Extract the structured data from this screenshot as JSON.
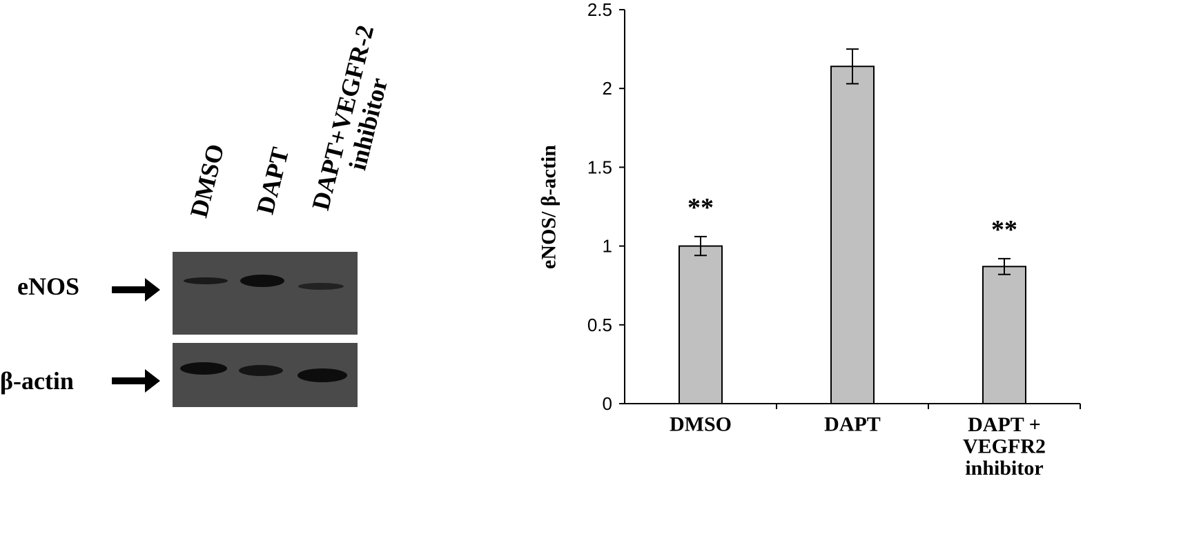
{
  "blot": {
    "lanes": [
      "DMSO",
      "DAPT",
      "DAPT+VEGFR-2\ninhibitor"
    ],
    "rows": [
      "eNOS",
      "β-actin"
    ]
  },
  "chart_data": {
    "type": "bar",
    "y_label": "eNOS/ β-actin",
    "categories": [
      "DMSO",
      "DAPT",
      "DAPT +\nVEGFR2\ninhibitor"
    ],
    "series": [
      {
        "color": "#c0c0c0",
        "values": [
          1.0,
          2.14,
          0.87
        ],
        "errors": [
          0.06,
          0.11,
          0.05
        ]
      }
    ],
    "annotations": [
      {
        "text": "**",
        "category": "DMSO"
      },
      {
        "text": "**",
        "category": "DAPT +\nVEGFR2\ninhibitor"
      }
    ],
    "ylim": [
      0,
      2.5
    ],
    "yticks": [
      0,
      0.5,
      1,
      1.5,
      2,
      2.5
    ]
  }
}
